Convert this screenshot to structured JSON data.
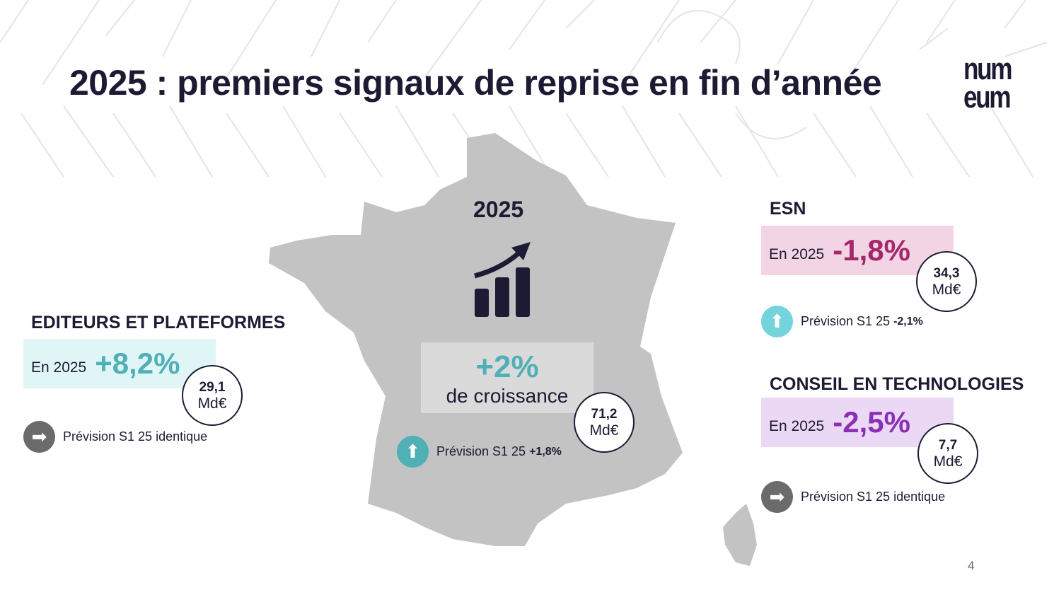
{
  "title": "2025 : premiers signaux de reprise en fin d’année",
  "logo": {
    "line1": "num",
    "line2": "eum"
  },
  "center": {
    "year": "2025",
    "growth": "+2%",
    "growth_label": "de croissance",
    "amount": "71,2",
    "unit": "Md€",
    "forecast_label": "Prévision S1 25",
    "forecast_value": "+1,8%",
    "forecast_icon": "arrow-up-icon"
  },
  "editeurs": {
    "heading": "EDITEURS ET PLATEFORMES",
    "en": "En 2025",
    "pct": "+8,2%",
    "amount": "29,1",
    "unit": "Md€",
    "forecast_label": "Prévision S1 25 identique",
    "forecast_icon": "arrow-right-icon",
    "color": "#4fb0b6"
  },
  "esn": {
    "heading": "ESN",
    "en": "En 2025",
    "pct": "-1,8%",
    "amount": "34,3",
    "unit": "Md€",
    "forecast_label": "Prévision S1 25",
    "forecast_value": "-2,1%",
    "forecast_icon": "arrow-up-icon",
    "color": "#a3286a"
  },
  "conseil": {
    "heading": "CONSEIL EN TECHNOLOGIES",
    "en": "En 2025",
    "pct": "-2,5%",
    "amount": "7,7",
    "unit": "Md€",
    "forecast_label": "Prévision S1 25 identique",
    "forecast_icon": "arrow-right-icon",
    "color": "#8b2fb5"
  },
  "page_number": "4"
}
